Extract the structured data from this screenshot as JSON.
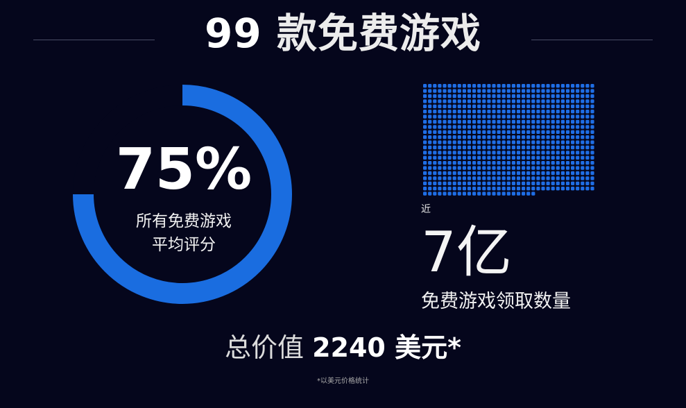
{
  "title": {
    "number": "99",
    "text": "款免费游戏"
  },
  "rating": {
    "value_percent": 75,
    "label": "75%",
    "caption_line1": "所有免费游戏",
    "caption_line2": "平均评分"
  },
  "claims": {
    "prefix": "近",
    "value": "7亿",
    "caption": "免费游戏领取数量"
  },
  "total": {
    "prefix": "总价值",
    "value": "2240 美元*"
  },
  "footnote": "*以美元价格统计",
  "colors": {
    "background": "#05061c",
    "accent": "#1a6de0",
    "grid_dot": "#1f6ee6"
  }
}
